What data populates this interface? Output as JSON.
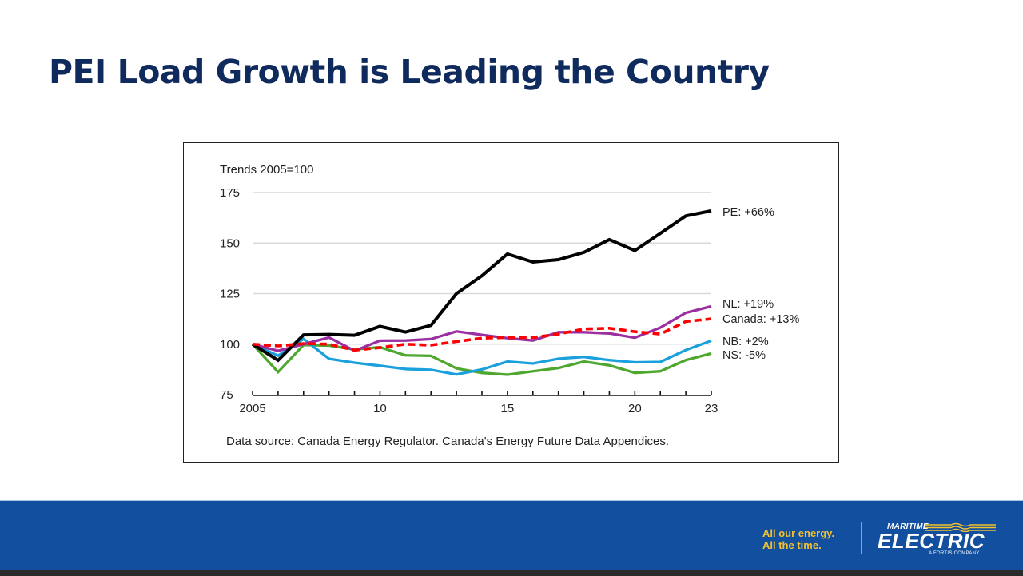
{
  "slide": {
    "title": "PEI Load Growth is Leading the Country"
  },
  "footer": {
    "tagline_line1": "All our energy.",
    "tagline_line2": "All the time.",
    "logo_top": "MARITIME",
    "logo_main": "ELECTRIC",
    "logo_sub": "A FORTIS COMPANY",
    "brand_blue": "#124f9f",
    "tagline_color": "#f2c12e"
  },
  "chart_data": {
    "type": "line",
    "title": "Trends 2005=100",
    "xlabel": "",
    "ylabel": "",
    "source_note": "Data source: Canada Energy Regulator. Canada's Energy Future Data Appendices.",
    "x": [
      2005,
      2006,
      2007,
      2008,
      2009,
      2010,
      2011,
      2012,
      2013,
      2014,
      2015,
      2016,
      2017,
      2018,
      2019,
      2020,
      2021,
      2022,
      2023
    ],
    "xlim": [
      2005,
      2023
    ],
    "ylim": [
      75,
      175
    ],
    "x_ticks": [
      {
        "value": 2005,
        "label": "2005"
      },
      {
        "value": 2010,
        "label": "10"
      },
      {
        "value": 2015,
        "label": "15"
      },
      {
        "value": 2020,
        "label": "20"
      },
      {
        "value": 2023,
        "label": "23"
      }
    ],
    "y_ticks": [
      {
        "value": 75,
        "label": "75"
      },
      {
        "value": 100,
        "label": "100"
      },
      {
        "value": 125,
        "label": "125"
      },
      {
        "value": 150,
        "label": "150"
      },
      {
        "value": 175,
        "label": "175"
      }
    ],
    "grid": "horizontal",
    "legend": "direct-labels-right",
    "series": [
      {
        "name": "PE",
        "label": "PE: +66%",
        "color": "#000000",
        "dashed": false,
        "values": [
          100,
          92,
          104.6,
          104.8,
          104.4,
          108.8,
          106,
          109.3,
          125,
          133.8,
          144.6,
          140.6,
          141.8,
          145.4,
          151.7,
          146.3,
          154.8,
          163.4,
          166
        ]
      },
      {
        "name": "NL",
        "label": "NL: +19%",
        "color": "#9b2ea0",
        "dashed": false,
        "values": [
          100,
          96.7,
          100,
          103.3,
          96.7,
          101.7,
          101.8,
          102.5,
          106.3,
          104.6,
          103,
          101.8,
          105.9,
          105.9,
          105.3,
          103.2,
          108.2,
          115.5,
          118.7
        ]
      },
      {
        "name": "Canada",
        "label": "Canada: +13%",
        "color": "#ff0000",
        "dashed": true,
        "values": [
          100,
          99.1,
          100.3,
          100,
          97,
          98.3,
          100,
          99.5,
          101.3,
          103,
          103.3,
          103.3,
          105,
          107.5,
          107.9,
          106.2,
          105,
          111.2,
          112.5
        ]
      },
      {
        "name": "NB",
        "label": "NB: +2%",
        "color": "#1aa0dc",
        "dashed": false,
        "values": [
          100,
          94.3,
          102.6,
          92.8,
          90.8,
          89.3,
          87.7,
          87.3,
          85,
          87.5,
          91.4,
          90.4,
          92.8,
          93.7,
          92.1,
          91,
          91.2,
          97.1,
          101.7
        ]
      },
      {
        "name": "NS",
        "label": "NS: -5%",
        "color": "#4ea72e",
        "dashed": false,
        "values": [
          100,
          86.2,
          99.6,
          99.3,
          97.4,
          98.5,
          94.5,
          94.2,
          88,
          85.8,
          84.9,
          86.6,
          88.2,
          91.4,
          89.5,
          85.8,
          86.6,
          92.1,
          95.4
        ]
      }
    ]
  }
}
